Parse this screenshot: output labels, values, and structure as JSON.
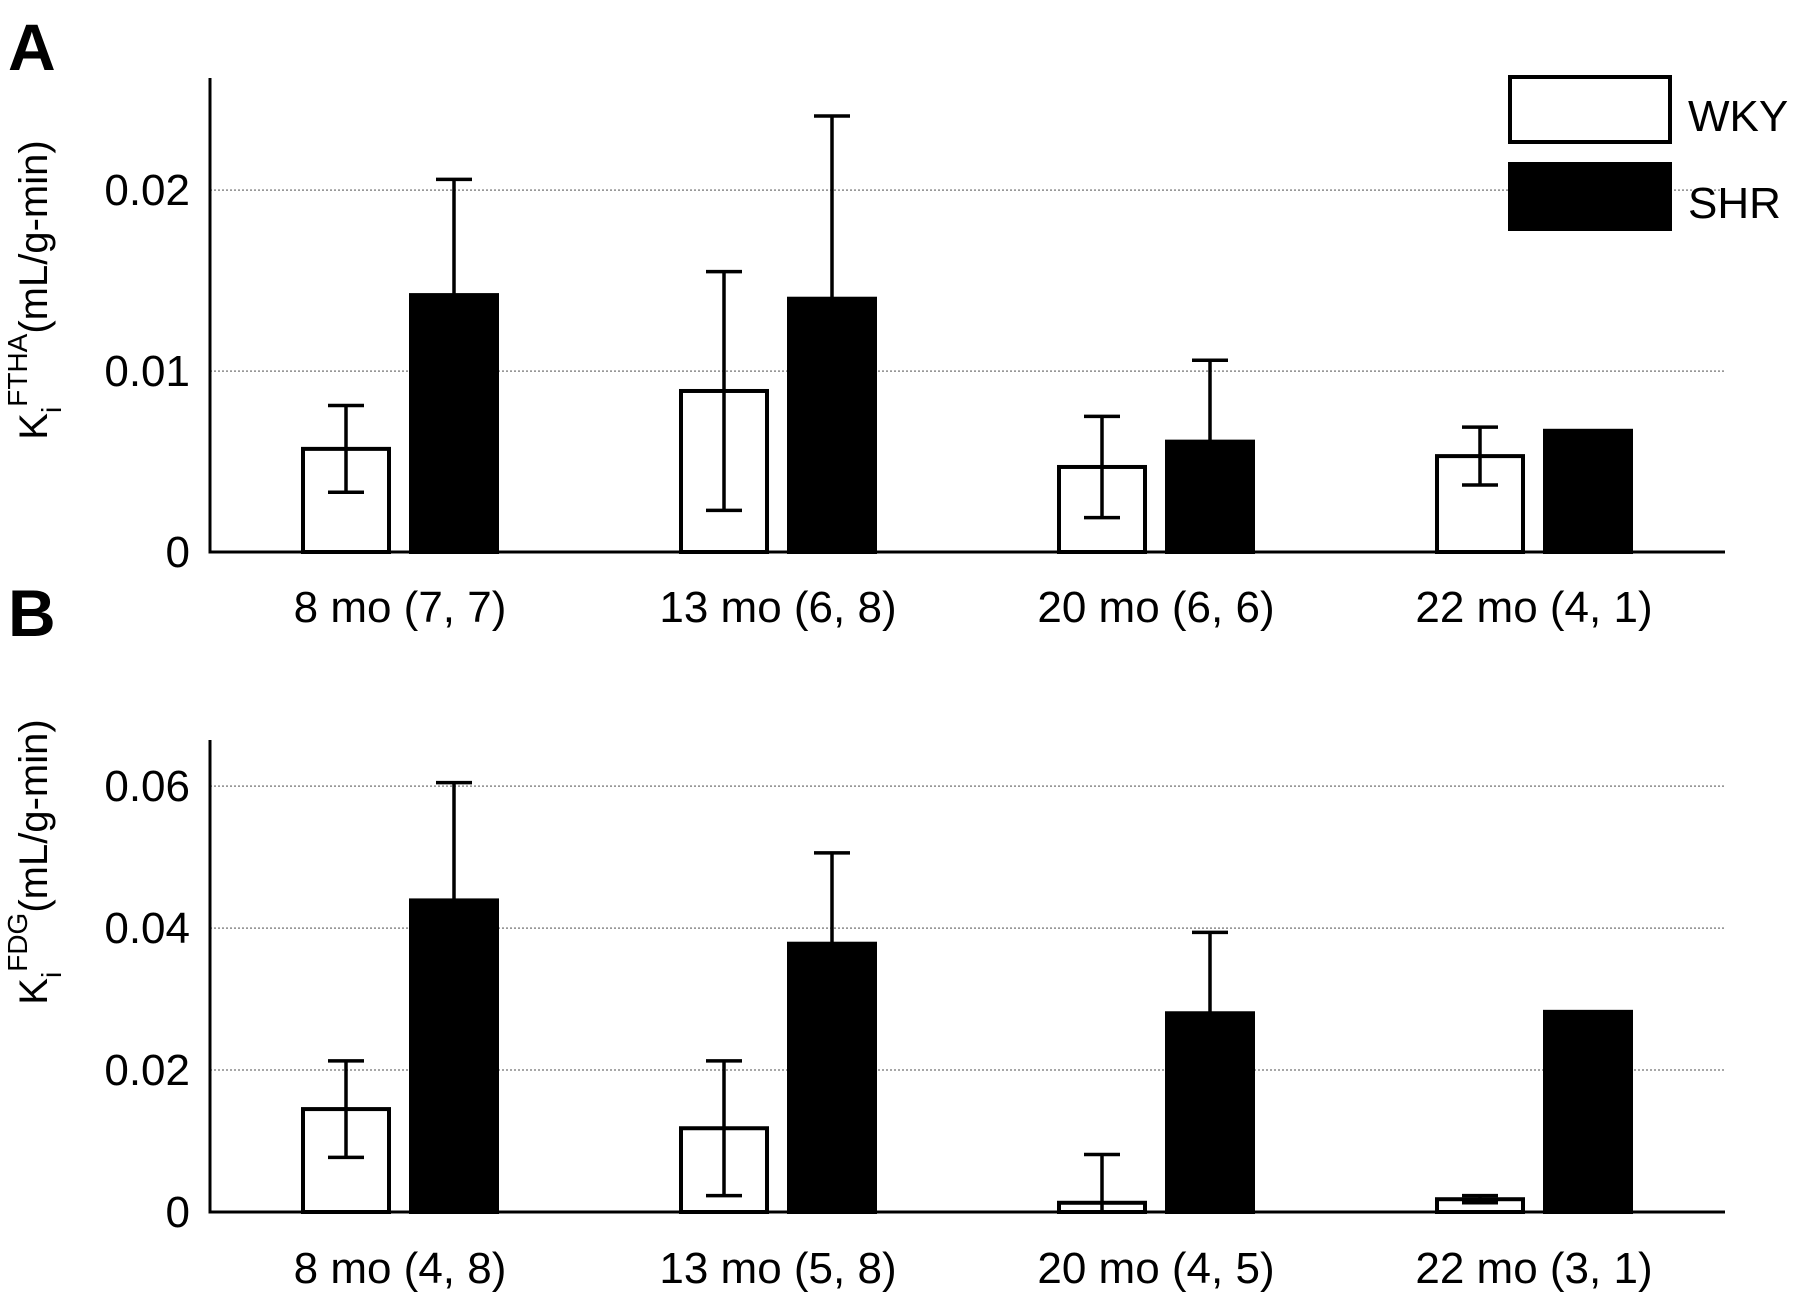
{
  "legend": [
    {
      "label": "WKY",
      "fill": "#ffffff"
    },
    {
      "label": "SHR",
      "fill": "#000000"
    }
  ],
  "chart_data": [
    {
      "type": "bar",
      "panel": "A",
      "ylabel": {
        "base": "K",
        "sub": "i",
        "sup": "FTHA",
        "unit": "(mL/g-min)"
      },
      "categories": [
        "8 mo (7, 7)",
        "13 mo (6, 8)",
        "20 mo (6, 6)",
        "22 mo (4, 1)"
      ],
      "yticks": [
        0,
        0.01,
        0.02
      ],
      "ytick_labels": [
        "0",
        "0.01",
        "0.02"
      ],
      "ylim": [
        0,
        0.0262
      ],
      "grid": true,
      "legend_position": "top-right",
      "series": [
        {
          "name": "WKY",
          "values": [
            0.0057,
            0.0089,
            0.0047,
            0.0053
          ],
          "err": [
            0.0024,
            0.0066,
            0.0028,
            0.0016
          ]
        },
        {
          "name": "SHR",
          "values": [
            0.0142,
            0.014,
            0.0061,
            0.0067
          ],
          "err": [
            0.0064,
            0.0101,
            0.0045,
            null
          ]
        }
      ]
    },
    {
      "type": "bar",
      "panel": "B",
      "ylabel": {
        "base": "K",
        "sub": "i",
        "sup": "FDG",
        "unit": "(mL/g-min)"
      },
      "categories": [
        "8 mo (4, 8)",
        "13 mo (5, 8)",
        "20 mo (4, 5)",
        "22 mo (3, 1)"
      ],
      "yticks": [
        0,
        0.02,
        0.04,
        0.06
      ],
      "ytick_labels": [
        "0",
        "0.02",
        "0.04",
        "0.06"
      ],
      "ylim": [
        0,
        0.0665
      ],
      "grid": true,
      "series": [
        {
          "name": "WKY",
          "values": [
            0.0145,
            0.0118,
            0.0013,
            0.0018
          ],
          "err": [
            0.0068,
            0.0095,
            0.0068,
            0.0005
          ]
        },
        {
          "name": "SHR",
          "values": [
            0.0439,
            0.0378,
            0.028,
            0.0282
          ],
          "err": [
            0.0166,
            0.0128,
            0.0114,
            null
          ]
        }
      ]
    }
  ]
}
